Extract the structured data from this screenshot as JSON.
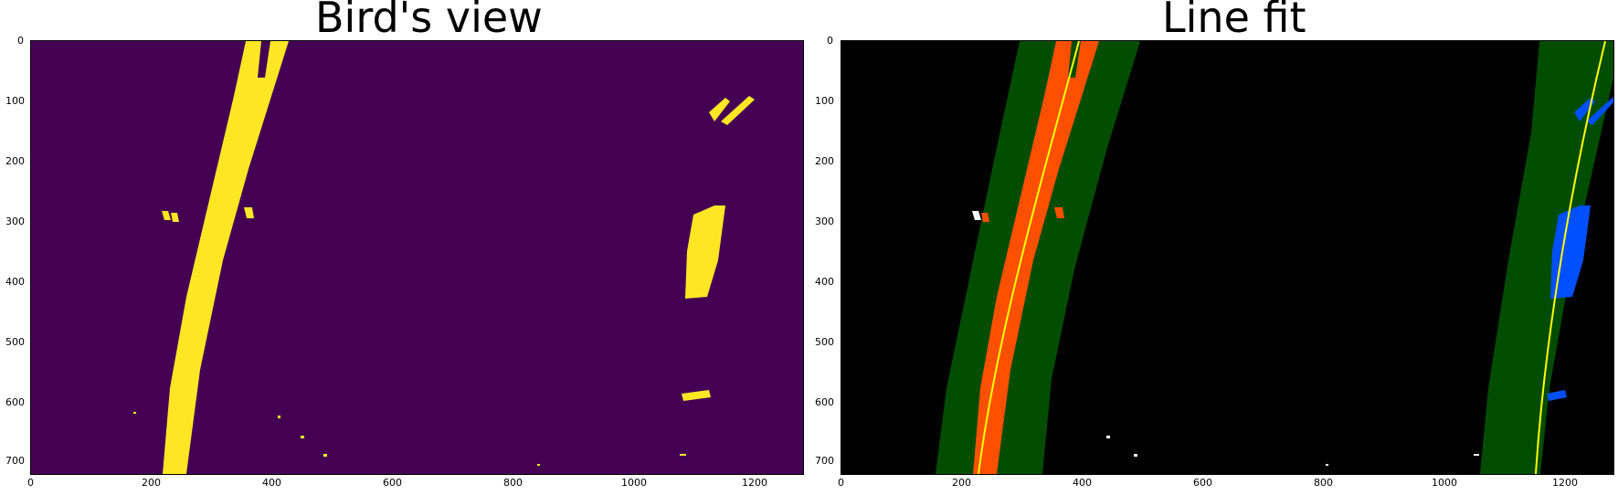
{
  "panels": [
    {
      "title": "Bird's view",
      "xticks": [
        "0",
        "200",
        "400",
        "600",
        "800",
        "1000",
        "1200"
      ],
      "yticks": [
        "0",
        "100",
        "200",
        "300",
        "400",
        "500",
        "600",
        "700"
      ],
      "background": "#440154",
      "pixel_color": "#fde725"
    },
    {
      "title": "Line fit",
      "xticks": [
        "0",
        "200",
        "400",
        "600",
        "800",
        "1000",
        "1200"
      ],
      "yticks": [
        "0",
        "100",
        "200",
        "300",
        "400",
        "500",
        "600",
        "700"
      ],
      "background": "#000000",
      "window_color": "#004d00",
      "left_lane_color": "#ff5000",
      "right_lane_color": "#0050ff",
      "fit_line_color": "#ffff00"
    }
  ]
}
